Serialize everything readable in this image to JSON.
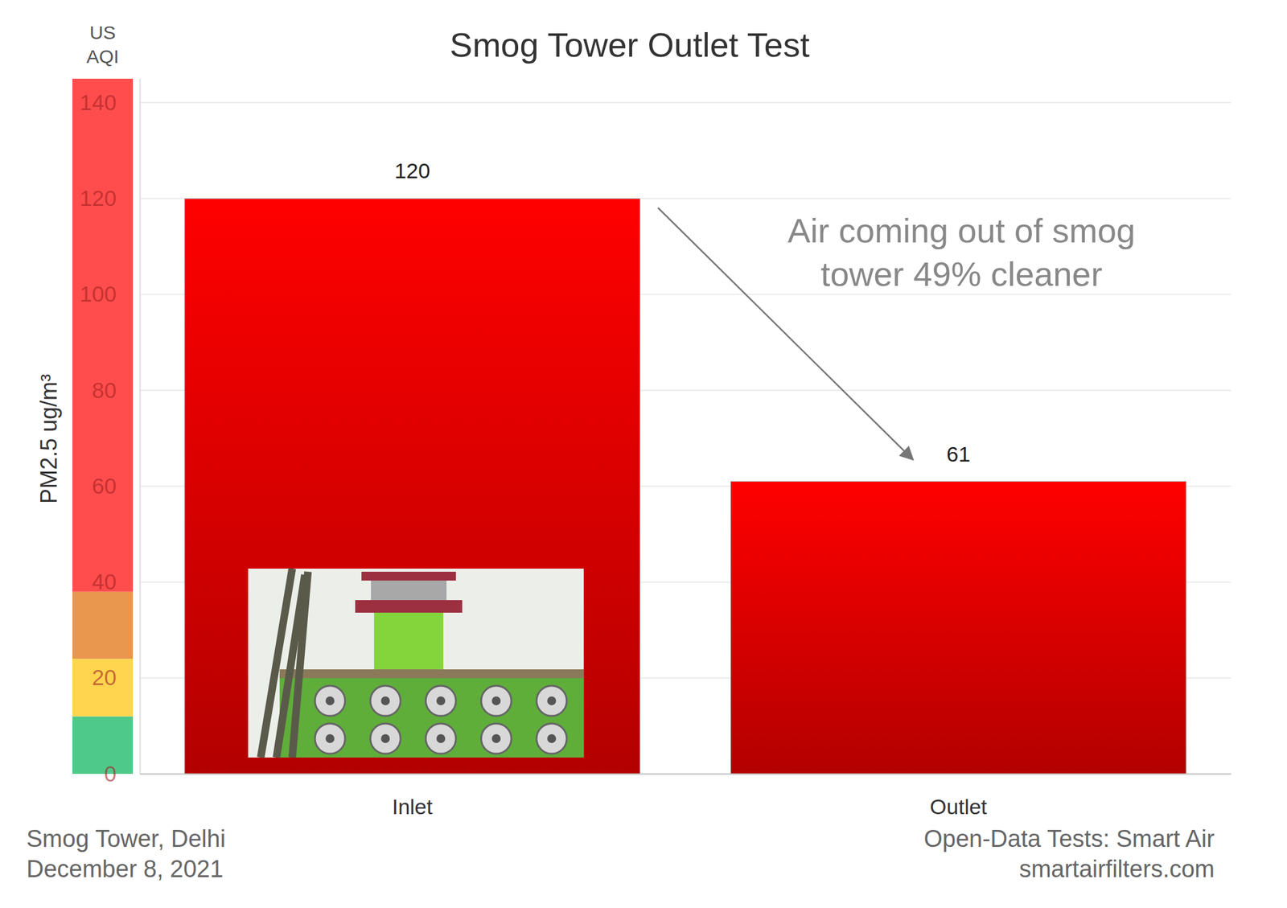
{
  "chart_data": {
    "type": "bar",
    "title": "Smog Tower Outlet Test",
    "y_label": "PM2.5 ug/m³",
    "color_bar_label": [
      "US",
      "AQI"
    ],
    "categories": [
      "Inlet",
      "Outlet"
    ],
    "values": [
      120,
      61
    ],
    "color": "#ff0000",
    "ylim": [
      0,
      145
    ],
    "yticks": [
      0,
      20,
      40,
      60,
      80,
      100,
      120,
      140
    ],
    "grid": true,
    "data_labels": true,
    "annotation": [
      "Air coming out of smog",
      "tower 49% cleaner"
    ],
    "footer_left": [
      "Smog Tower, Delhi",
      "December 8, 2021"
    ],
    "footer_right": [
      "Open-Data Tests: Smart Air",
      "smartairfilters.com"
    ],
    "aqi_bands": [
      {
        "from": 0,
        "to": 12,
        "color": "#4fc98a"
      },
      {
        "from": 12,
        "to": 24,
        "color": "#ffd54f"
      },
      {
        "from": 24,
        "to": 38,
        "color": "#e9964f"
      },
      {
        "from": 38,
        "to": 145,
        "color": "#ff4d4d"
      }
    ]
  }
}
